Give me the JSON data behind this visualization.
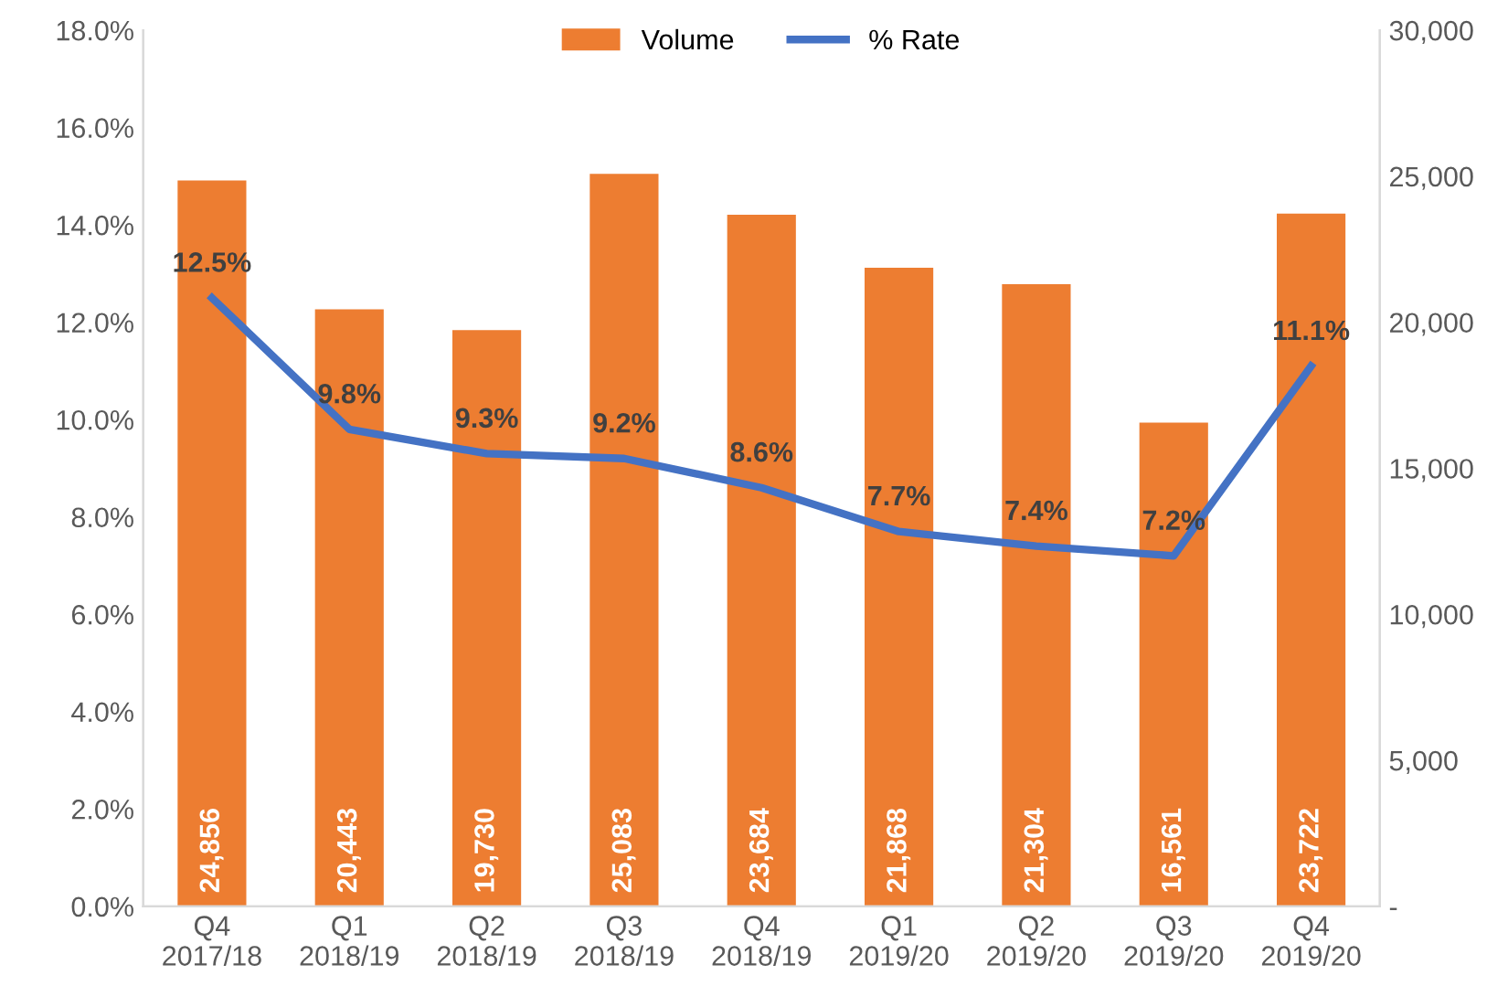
{
  "chart_data": {
    "type": "bar",
    "categories": [
      "Q4\n2017/18",
      "Q1\n2018/19",
      "Q2\n2018/19",
      "Q3\n2018/19",
      "Q4\n2018/19",
      "Q1\n2019/20",
      "Q2\n2019/20",
      "Q3\n2019/20",
      "Q4\n2019/20"
    ],
    "series": [
      {
        "name": "Volume",
        "axis": "y2",
        "color": "#ed7d31",
        "values": [
          24856,
          20443,
          19730,
          25083,
          23684,
          21868,
          21304,
          16561,
          23722
        ],
        "value_labels": [
          "24,856",
          "20,443",
          "19,730",
          "25,083",
          "23,684",
          "21,868",
          "21,304",
          "16,561",
          "23,722"
        ]
      },
      {
        "name": "% Rate",
        "type": "line",
        "axis": "y",
        "color": "#4472c4",
        "values": [
          12.5,
          9.8,
          9.3,
          9.2,
          8.6,
          7.7,
          7.4,
          7.2,
          11.1
        ],
        "value_labels": [
          "12.5%",
          "9.8%",
          "9.3%",
          "9.2%",
          "8.6%",
          "7.7%",
          "7.4%",
          "7.2%",
          "11.1%"
        ]
      }
    ],
    "ylim": [
      0,
      18
    ],
    "yticks": [
      {
        "value": 0,
        "label": "0.0%"
      },
      {
        "value": 2,
        "label": "2.0%"
      },
      {
        "value": 4,
        "label": "4.0%"
      },
      {
        "value": 6,
        "label": "6.0%"
      },
      {
        "value": 8,
        "label": "8.0%"
      },
      {
        "value": 10,
        "label": "10.0%"
      },
      {
        "value": 12,
        "label": "12.0%"
      },
      {
        "value": 14,
        "label": "14.0%"
      },
      {
        "value": 16,
        "label": "16.0%"
      },
      {
        "value": 18,
        "label": "18.0%"
      }
    ],
    "y2lim": [
      0,
      30000
    ],
    "y2ticks": [
      {
        "value": 0,
        "label": "-"
      },
      {
        "value": 5000,
        "label": "5,000"
      },
      {
        "value": 10000,
        "label": "10,000"
      },
      {
        "value": 15000,
        "label": "15,000"
      },
      {
        "value": 20000,
        "label": "20,000"
      },
      {
        "value": 25000,
        "label": "25,000"
      },
      {
        "value": 30000,
        "label": "30,000"
      }
    ],
    "legend": "top",
    "line_style": "solid",
    "marker": "none"
  }
}
